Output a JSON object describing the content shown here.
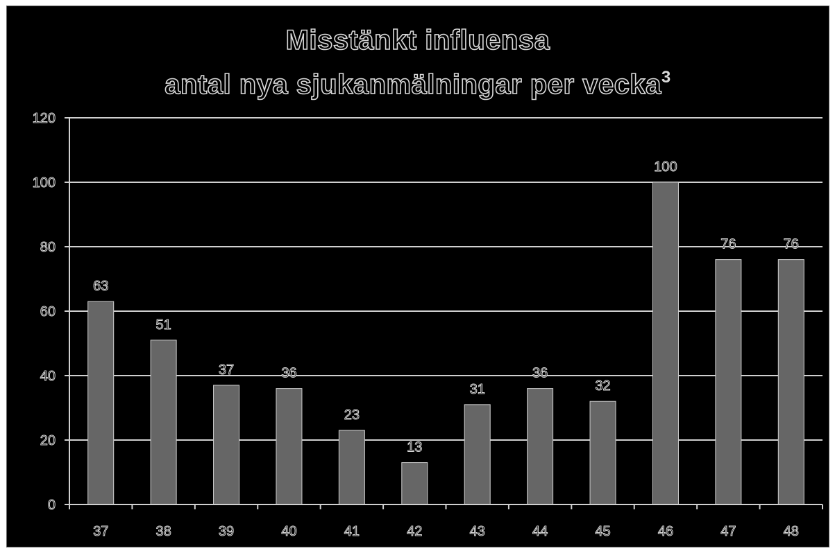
{
  "chart_data": {
    "type": "bar",
    "title_line1": "Misstänkt influensa",
    "title_line2": "antal nya sjukanmälningar per vecka",
    "title_sup": "3",
    "categories": [
      "37",
      "38",
      "39",
      "40",
      "41",
      "42",
      "43",
      "44",
      "45",
      "46",
      "47",
      "48"
    ],
    "values": [
      63,
      51,
      37,
      36,
      23,
      13,
      31,
      36,
      32,
      100,
      76,
      76
    ],
    "data_labels": [
      "63",
      "51",
      "37",
      "36",
      "23",
      "13",
      "31",
      "36",
      "32",
      "100",
      "76",
      "76"
    ],
    "yticks": [
      "0",
      "20",
      "40",
      "60",
      "80",
      "100",
      "120"
    ],
    "ylim": [
      0,
      120
    ],
    "grid": true,
    "legend": "none",
    "colors": {
      "background": "#000000",
      "bar": "#666666",
      "bar_outline": "#cfcfcf",
      "text": "#d9d9d9",
      "grid": "#d0d0d0"
    }
  }
}
